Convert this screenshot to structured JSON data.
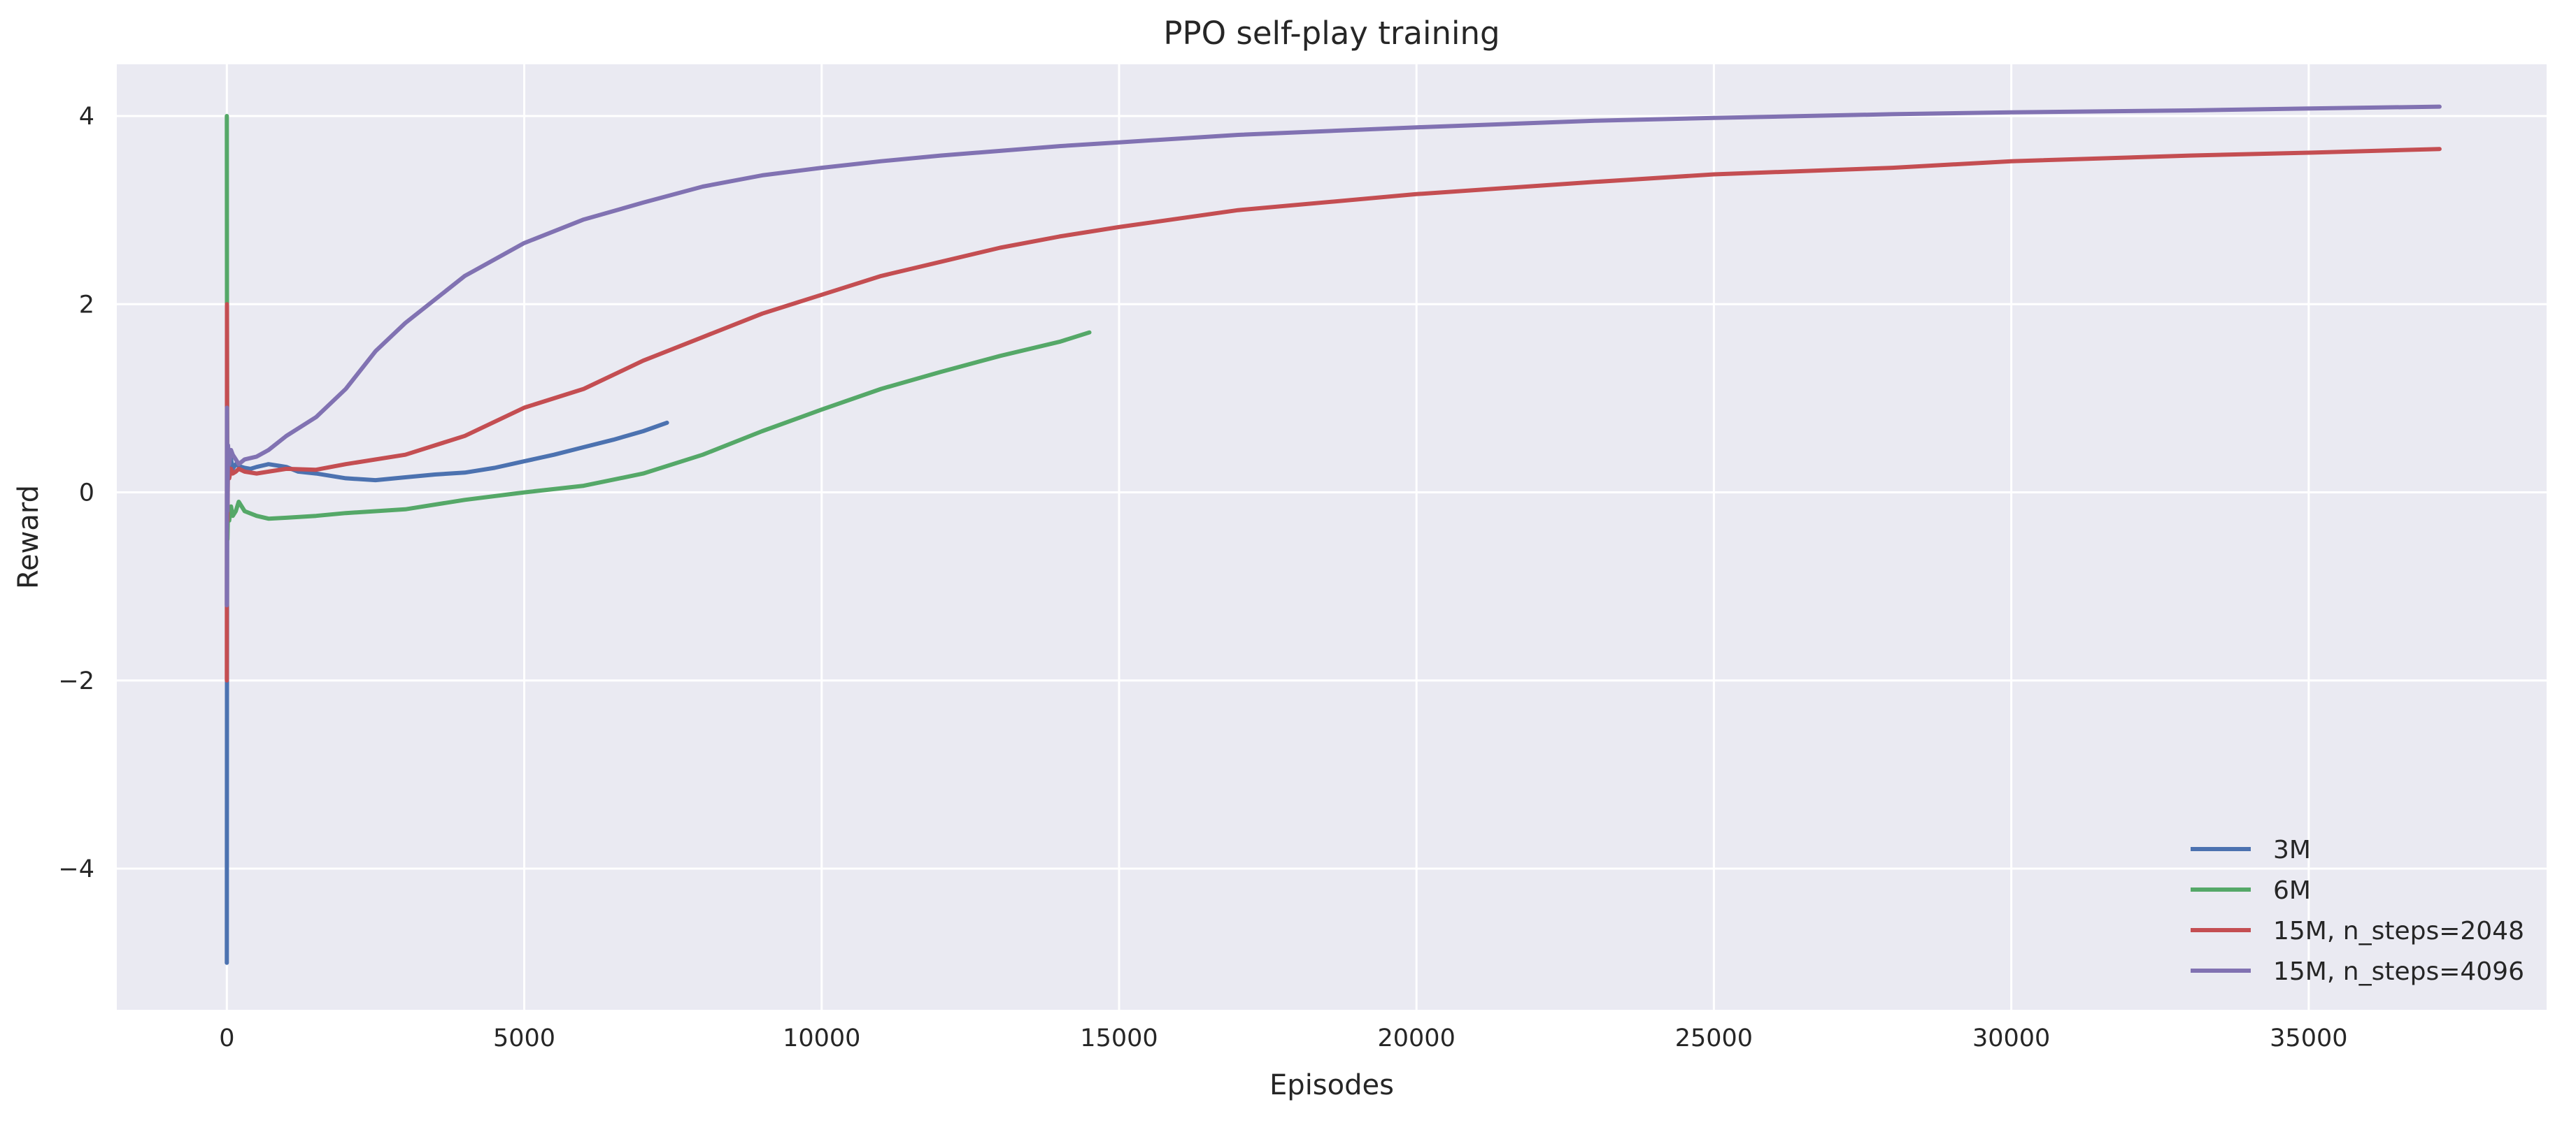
{
  "chart_data": {
    "type": "line",
    "title": "PPO self-play training",
    "xlabel": "Episodes",
    "ylabel": "Reward",
    "xlim": [
      -1850,
      39000
    ],
    "ylim": [
      -5.5,
      4.55
    ],
    "grid": true,
    "legend_position": "lower-right",
    "x_ticks": [
      0,
      5000,
      10000,
      15000,
      20000,
      25000,
      30000,
      35000
    ],
    "x_tick_labels": [
      "0",
      "5000",
      "10000",
      "15000",
      "20000",
      "25000",
      "30000",
      "35000"
    ],
    "y_ticks": [
      -4,
      -2,
      0,
      2,
      4
    ],
    "y_tick_labels": [
      "−4",
      "−2",
      "0",
      "2",
      "4"
    ],
    "colors": {
      "background": "#eaeaf2",
      "grid": "#ffffff"
    },
    "series": [
      {
        "name": "3M",
        "color": "#4c72b0",
        "x": [
          0,
          2,
          5,
          10,
          20,
          40,
          70,
          100,
          150,
          200,
          300,
          400,
          500,
          700,
          900,
          1000,
          1200,
          1500,
          2000,
          2500,
          3000,
          3500,
          4000,
          4500,
          5000,
          5500,
          6000,
          6500,
          7000,
          7400
        ],
        "y": [
          -5.0,
          -2.0,
          -0.5,
          0.0,
          0.3,
          0.2,
          0.35,
          0.25,
          0.3,
          0.28,
          0.26,
          0.25,
          0.27,
          0.3,
          0.28,
          0.27,
          0.22,
          0.2,
          0.15,
          0.13,
          0.16,
          0.19,
          0.21,
          0.26,
          0.33,
          0.4,
          0.48,
          0.56,
          0.65,
          0.74
        ]
      },
      {
        "name": "6M",
        "color": "#55a868",
        "x": [
          0,
          2,
          5,
          10,
          20,
          40,
          70,
          100,
          150,
          200,
          300,
          500,
          700,
          1000,
          1500,
          2000,
          3000,
          4000,
          5000,
          6000,
          7000,
          8000,
          9000,
          10000,
          11000,
          12000,
          13000,
          14000,
          14500
        ],
        "y": [
          4.0,
          2.0,
          0.5,
          -0.5,
          -0.2,
          -0.3,
          -0.15,
          -0.25,
          -0.2,
          -0.1,
          -0.2,
          -0.25,
          -0.28,
          -0.27,
          -0.25,
          -0.22,
          -0.18,
          -0.08,
          0.0,
          0.07,
          0.2,
          0.4,
          0.65,
          0.88,
          1.1,
          1.28,
          1.45,
          1.6,
          1.7
        ]
      },
      {
        "name": "15M, n_steps=2048",
        "color": "#c44e52",
        "x": [
          0,
          2,
          5,
          10,
          20,
          40,
          70,
          100,
          150,
          200,
          300,
          500,
          700,
          1000,
          1500,
          2000,
          3000,
          4000,
          5000,
          6000,
          7000,
          8000,
          9000,
          10000,
          11000,
          12000,
          13000,
          14000,
          15000,
          17000,
          20000,
          23000,
          25000,
          28000,
          30000,
          33000,
          35000,
          37200
        ],
        "y": [
          -2.0,
          2.0,
          0.5,
          -0.3,
          0.3,
          0.15,
          0.25,
          0.2,
          0.22,
          0.25,
          0.22,
          0.2,
          0.22,
          0.25,
          0.24,
          0.3,
          0.4,
          0.6,
          0.9,
          1.1,
          1.4,
          1.65,
          1.9,
          2.1,
          2.3,
          2.45,
          2.6,
          2.72,
          2.82,
          3.0,
          3.17,
          3.3,
          3.38,
          3.45,
          3.52,
          3.58,
          3.61,
          3.65
        ]
      },
      {
        "name": "15M, n_steps=4096",
        "color": "#8172b2",
        "x": [
          0,
          2,
          5,
          10,
          20,
          40,
          70,
          100,
          150,
          200,
          300,
          500,
          700,
          1000,
          1500,
          2000,
          2500,
          3000,
          4000,
          5000,
          6000,
          7000,
          8000,
          9000,
          10000,
          11000,
          12000,
          13000,
          14000,
          15000,
          17000,
          20000,
          23000,
          25000,
          28000,
          30000,
          33000,
          35000,
          37200
        ],
        "y": [
          -1.2,
          0.9,
          0.4,
          -0.2,
          0.5,
          0.3,
          0.45,
          0.4,
          0.35,
          0.3,
          0.35,
          0.38,
          0.45,
          0.6,
          0.8,
          1.1,
          1.5,
          1.8,
          2.3,
          2.65,
          2.9,
          3.08,
          3.25,
          3.37,
          3.45,
          3.52,
          3.58,
          3.63,
          3.68,
          3.72,
          3.8,
          3.88,
          3.95,
          3.98,
          4.02,
          4.04,
          4.06,
          4.08,
          4.1
        ]
      }
    ]
  }
}
